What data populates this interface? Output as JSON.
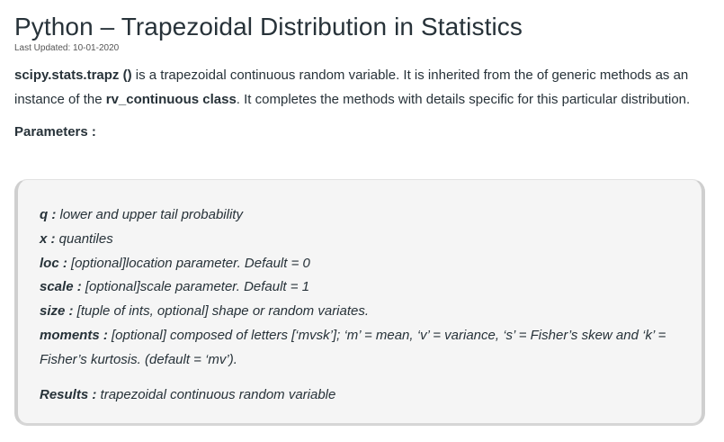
{
  "article": {
    "title": "Python – Trapezoidal Distribution in Statistics",
    "last_updated": "Last Updated: 10-01-2020",
    "intro": {
      "func_name": "scipy.stats.trapz ()",
      "text1": " is a trapezoidal continuous random variable. It is inherited from the of generic methods as an instance of the ",
      "class_name": "rv_continuous class",
      "text2": ". It completes the methods with details specific for this particular distribution."
    },
    "parameters_label": "Parameters :",
    "parameters": [
      {
        "name": "q :",
        "desc": " lower and upper tail probability"
      },
      {
        "name": "x :",
        "desc": " quantiles"
      },
      {
        "name": "loc :",
        "desc": " [optional]location parameter. Default = 0"
      },
      {
        "name": "scale :",
        "desc": " [optional]scale parameter. Default = 1"
      },
      {
        "name": "size :",
        "desc": " [tuple of ints, optional] shape or random variates."
      },
      {
        "name": "moments :",
        "desc": " [optional] composed of letters [‘mvsk’]; ‘m’ = mean, ‘v’ = variance, ‘s’ = Fisher’s skew and ‘k’ = Fisher’s kurtosis. (default = ‘mv’)."
      }
    ],
    "results": {
      "name": "Results :",
      "desc": " trapezoidal continuous random variable"
    }
  }
}
